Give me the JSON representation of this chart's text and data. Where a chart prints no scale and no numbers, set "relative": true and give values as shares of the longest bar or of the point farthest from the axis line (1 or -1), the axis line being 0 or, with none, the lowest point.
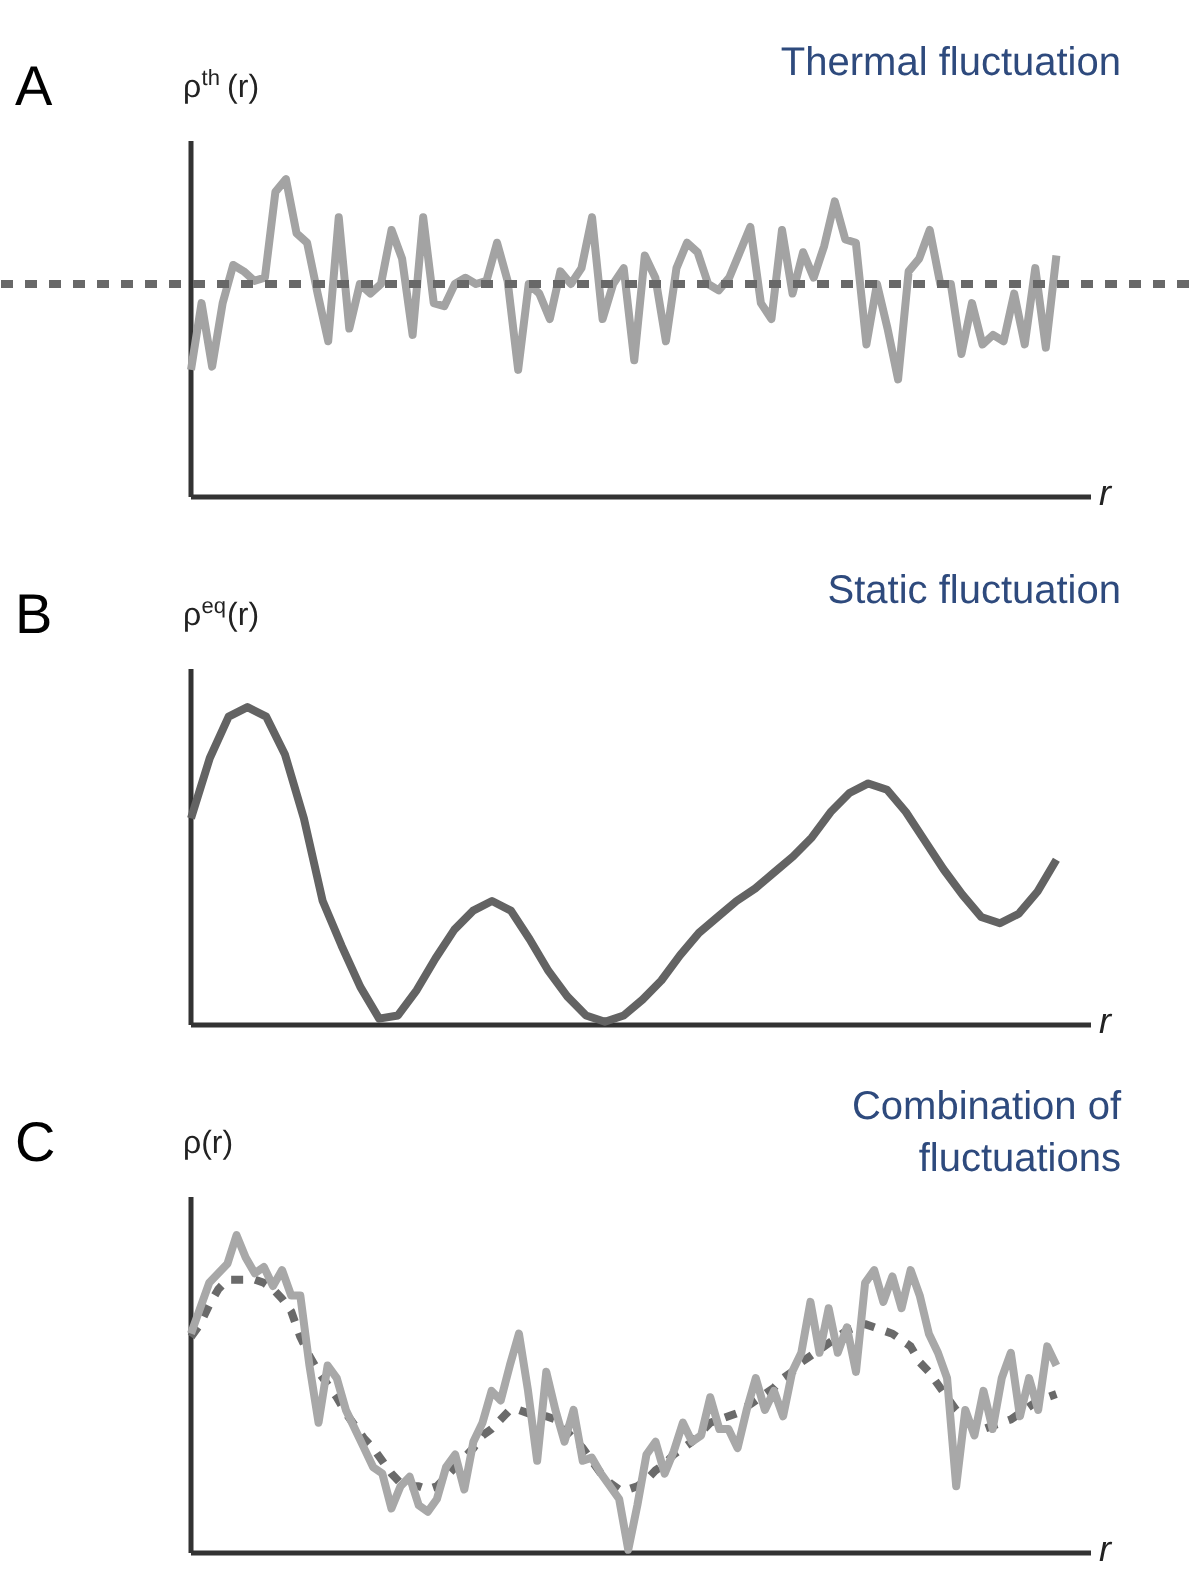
{
  "chart_data": [
    {
      "type": "line",
      "title": "Thermal fluctuation",
      "ylabel": "ρ$^{th}$(r)",
      "xlabel": "r",
      "relative": true,
      "annotations": [
        "A"
      ],
      "categories": [
        null,
        null,
        null,
        null,
        null,
        null,
        null,
        null,
        null,
        null,
        null,
        null,
        null,
        null,
        null,
        null,
        null,
        null,
        null,
        null,
        null,
        null,
        null,
        null,
        null,
        null,
        null,
        null,
        null,
        null,
        null,
        null,
        null,
        null,
        null,
        null,
        null,
        null,
        null,
        null,
        null,
        null,
        null,
        null,
        null,
        null,
        null,
        null,
        null,
        null,
        null,
        null,
        null,
        null,
        null,
        null,
        null,
        null,
        null,
        null,
        null,
        null,
        null,
        null,
        null,
        null,
        null,
        null,
        null,
        null,
        null,
        null,
        null,
        null,
        null,
        null,
        null,
        null,
        null,
        null,
        null,
        null,
        null
      ],
      "ref_lines": [
        {
          "axis": "y",
          "value": 0.67,
          "color": "#686868",
          "line_style": "dashed"
        }
      ],
      "series": [
        {
          "color": "#a3a3a3",
          "values": [
            0.4,
            0.61,
            0.41,
            0.61,
            0.73,
            0.71,
            0.68,
            0.69,
            0.96,
            1.0,
            0.83,
            0.8,
            0.64,
            0.49,
            0.88,
            0.53,
            0.67,
            0.64,
            0.67,
            0.84,
            0.75,
            0.51,
            0.88,
            0.61,
            0.6,
            0.67,
            0.69,
            0.67,
            0.68,
            0.8,
            0.68,
            0.4,
            0.67,
            0.64,
            0.56,
            0.71,
            0.67,
            0.72,
            0.88,
            0.56,
            0.67,
            0.72,
            0.43,
            0.76,
            0.69,
            0.49,
            0.72,
            0.8,
            0.77,
            0.67,
            0.65,
            0.69,
            0.77,
            0.85,
            0.61,
            0.56,
            0.84,
            0.64,
            0.77,
            0.69,
            0.79,
            0.93,
            0.81,
            0.8,
            0.48,
            0.67,
            0.53,
            0.37,
            0.71,
            0.75,
            0.84,
            0.67,
            0.67,
            0.45,
            0.61,
            0.48,
            0.51,
            0.49,
            0.64,
            0.48,
            0.72,
            0.47,
            0.76
          ]
        }
      ]
    },
    {
      "type": "line",
      "title": "Static fluctuation",
      "ylabel": "ρ$^{eq}$(r)",
      "xlabel": "r",
      "relative": true,
      "annotations": [
        "B"
      ],
      "categories": [
        null,
        null,
        null,
        null,
        null,
        null,
        null,
        null,
        null,
        null,
        null,
        null,
        null,
        null,
        null,
        null,
        null,
        null,
        null,
        null,
        null,
        null,
        null,
        null,
        null,
        null,
        null,
        null,
        null,
        null,
        null,
        null,
        null,
        null,
        null,
        null,
        null,
        null,
        null,
        null,
        null,
        null,
        null,
        null,
        null,
        null,
        null
      ],
      "series": [
        {
          "color": "#636363",
          "values": [
            0.65,
            0.84,
            0.97,
            1.0,
            0.97,
            0.85,
            0.65,
            0.39,
            0.25,
            0.12,
            0.02,
            0.03,
            0.11,
            0.21,
            0.3,
            0.36,
            0.39,
            0.36,
            0.27,
            0.17,
            0.09,
            0.03,
            0.01,
            0.03,
            0.08,
            0.14,
            0.22,
            0.29,
            0.34,
            0.39,
            0.43,
            0.48,
            0.53,
            0.59,
            0.67,
            0.73,
            0.76,
            0.74,
            0.67,
            0.58,
            0.49,
            0.41,
            0.34,
            0.32,
            0.35,
            0.42,
            0.52
          ]
        }
      ]
    },
    {
      "type": "line",
      "title": "Combination of fluctuations",
      "ylabel": "ρ(r)",
      "xlabel": "r",
      "relative": true,
      "annotations": [
        "C"
      ],
      "categories": [
        null,
        null,
        null,
        null,
        null,
        null,
        null,
        null,
        null,
        null,
        null,
        null,
        null,
        null,
        null,
        null,
        null,
        null,
        null,
        null,
        null,
        null,
        null,
        null,
        null,
        null,
        null,
        null,
        null,
        null,
        null,
        null,
        null,
        null,
        null,
        null,
        null,
        null,
        null,
        null,
        null,
        null,
        null,
        null,
        null,
        null,
        null,
        null,
        null,
        null,
        null,
        null,
        null,
        null,
        null,
        null,
        null,
        null,
        null,
        null,
        null,
        null,
        null,
        null,
        null,
        null,
        null,
        null,
        null,
        null,
        null,
        null,
        null,
        null,
        null,
        null,
        null,
        null,
        null,
        null,
        null,
        null,
        null,
        null,
        null,
        null,
        null,
        null,
        null,
        null,
        null,
        null,
        null,
        null,
        null,
        null
      ],
      "series": [
        {
          "color": "#6a6a6a",
          "line_style": "dashed",
          "values": [
            0.68,
            0.72,
            0.78,
            0.83,
            0.86,
            0.86,
            0.86,
            0.86,
            0.85,
            0.83,
            0.8,
            0.76,
            0.68,
            0.62,
            0.57,
            0.53,
            0.49,
            0.44,
            0.4,
            0.36,
            0.33,
            0.29,
            0.25,
            0.22,
            0.21,
            0.21,
            0.2,
            0.21,
            0.24,
            0.27,
            0.3,
            0.33,
            0.37,
            0.39,
            0.42,
            0.45,
            0.45,
            0.44,
            0.43,
            0.43,
            0.42,
            0.39,
            0.36,
            0.33,
            0.29,
            0.25,
            0.22,
            0.2,
            0.2,
            0.21,
            0.23,
            0.26,
            0.28,
            0.31,
            0.33,
            0.35,
            0.38,
            0.41,
            0.42,
            0.43,
            0.44,
            0.46,
            0.48,
            0.5,
            0.52,
            0.55,
            0.57,
            0.6,
            0.62,
            0.64,
            0.66,
            0.68,
            0.7,
            0.71,
            0.72,
            0.71,
            0.7,
            0.69,
            0.67,
            0.65,
            0.6,
            0.57,
            0.53,
            0.49,
            0.45,
            0.42,
            0.4,
            0.39,
            0.4,
            0.41,
            0.42,
            0.44,
            0.46,
            0.48,
            0.49,
            0.5
          ]
        },
        {
          "color": "#a8a8a8",
          "values": [
            0.69,
            0.77,
            0.85,
            0.88,
            0.91,
            1.0,
            0.93,
            0.88,
            0.9,
            0.84,
            0.89,
            0.81,
            0.81,
            0.59,
            0.41,
            0.59,
            0.55,
            0.45,
            0.39,
            0.33,
            0.27,
            0.25,
            0.14,
            0.21,
            0.24,
            0.15,
            0.13,
            0.17,
            0.27,
            0.31,
            0.2,
            0.35,
            0.41,
            0.51,
            0.48,
            0.59,
            0.69,
            0.51,
            0.29,
            0.57,
            0.45,
            0.35,
            0.45,
            0.29,
            0.3,
            0.25,
            0.21,
            0.17,
            0.01,
            0.15,
            0.31,
            0.35,
            0.25,
            0.32,
            0.41,
            0.35,
            0.37,
            0.49,
            0.39,
            0.39,
            0.33,
            0.45,
            0.55,
            0.45,
            0.51,
            0.43,
            0.57,
            0.63,
            0.79,
            0.63,
            0.77,
            0.63,
            0.71,
            0.57,
            0.85,
            0.89,
            0.79,
            0.87,
            0.77,
            0.89,
            0.81,
            0.69,
            0.63,
            0.55,
            0.21,
            0.45,
            0.37,
            0.51,
            0.39,
            0.55,
            0.63,
            0.43,
            0.55,
            0.45,
            0.65,
            0.59
          ]
        }
      ]
    }
  ]
}
